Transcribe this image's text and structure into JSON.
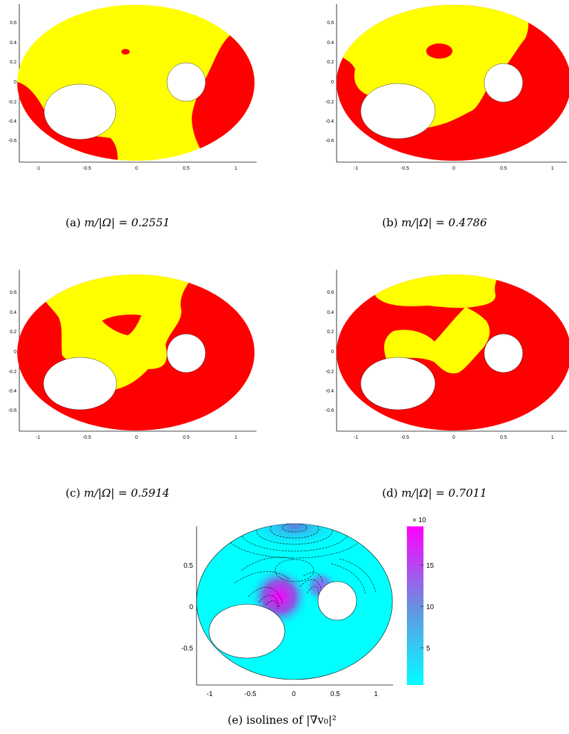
{
  "panels": [
    {
      "id": "a",
      "caption_label": "(a)",
      "ratio_text": "m/|Ω| = 0.2551",
      "ratio": 0.2551,
      "xticks": [
        "-1",
        "-0.5",
        "0",
        "0.5",
        "1"
      ],
      "yticks": [
        "0.6",
        "0.4",
        "0.2",
        "0",
        "-0.2",
        "-0.4",
        "-0.6"
      ],
      "colors": {
        "background": "#ffff00",
        "region": "#ff0000"
      }
    },
    {
      "id": "b",
      "caption_label": "(b)",
      "ratio_text": "m/|Ω| = 0.4786",
      "ratio": 0.4786,
      "xticks": [
        "-1",
        "-0.5",
        "0",
        "0.5",
        "1"
      ],
      "yticks": [
        "0.6",
        "0.4",
        "0.2",
        "0",
        "-0.2",
        "-0.4",
        "-0.6"
      ],
      "colors": {
        "background": "#ffff00",
        "region": "#ff0000"
      }
    },
    {
      "id": "c",
      "caption_label": "(c)",
      "ratio_text": "m/|Ω| = 0.5914",
      "ratio": 0.5914,
      "xticks": [
        "-1",
        "-0.5",
        "0",
        "0.5",
        "1"
      ],
      "yticks": [
        "0.6",
        "0.4",
        "0.2",
        "0",
        "-0.2",
        "-0.4",
        "-0.6"
      ],
      "colors": {
        "background": "#ffff00",
        "region": "#ff0000"
      }
    },
    {
      "id": "d",
      "caption_label": "(d)",
      "ratio_text": "m/|Ω| = 0.7011",
      "ratio": 0.7011,
      "xticks": [
        "-1",
        "-0.5",
        "0",
        "0.5",
        "1"
      ],
      "yticks": [
        "0.6",
        "0.4",
        "0.2",
        "0",
        "-0.2",
        "-0.4",
        "-0.6"
      ],
      "colors": {
        "background": "#ffff00",
        "region": "#ff0000"
      }
    }
  ],
  "contour_panel": {
    "caption_label": "(e)",
    "caption_text": "isolines of |∇v₀|²",
    "xticks": [
      "-1",
      "-0.5",
      "0",
      "0.5",
      "1"
    ],
    "yticks": [
      "0.5",
      "0",
      "-0.5"
    ],
    "colorbar": {
      "ticks": [
        "15",
        "10",
        "5"
      ],
      "exponent": "× 10"
    },
    "colors": {
      "fill": "#00ffff",
      "mid": "#6a8fe0",
      "high": "#ff00ff"
    }
  }
}
